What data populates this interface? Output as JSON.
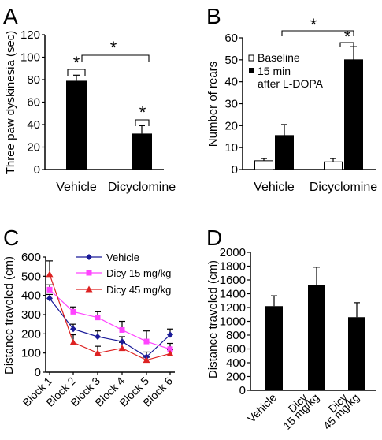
{
  "panels": {
    "A": {
      "letter": "A"
    },
    "B": {
      "letter": "B"
    },
    "C": {
      "letter": "C"
    },
    "D": {
      "letter": "D"
    }
  },
  "chart_data": [
    {
      "id": "A",
      "type": "bar",
      "categories": [
        "Vehicle",
        "Dicyclomine"
      ],
      "series": [
        {
          "values": [
            79,
            32
          ],
          "errors": [
            5,
            7
          ],
          "color": "#000000"
        }
      ],
      "ylabel": "Three paw dyskinesia (sec)",
      "ylim": [
        0,
        120
      ],
      "yticks": [
        "0",
        "20",
        "40",
        "60",
        "80",
        "100",
        "120"
      ],
      "significance_marker": "*",
      "significance": [
        {
          "between": "Vehicle top bar",
          "marker": "*"
        },
        {
          "between": "Vehicle vs Dicyclomine",
          "marker": "*"
        },
        {
          "between": "Dicyclomine top bar",
          "marker": "*"
        }
      ],
      "grid": false
    },
    {
      "id": "B",
      "type": "bar",
      "categories": [
        "Vehicle",
        "Dicyclomine"
      ],
      "series": [
        {
          "name": "Baseline",
          "values": [
            4,
            3.5
          ],
          "errors": [
            1,
            1.5
          ],
          "color": "#ffffff"
        },
        {
          "name": "15 min after L-DOPA",
          "values": [
            15.5,
            50
          ],
          "errors": [
            5,
            6
          ],
          "color": "#000000"
        }
      ],
      "legend_lines": [
        "Baseline",
        "15 min",
        "after L-DOPA"
      ],
      "ylabel": "Number of rears",
      "ylim": [
        0,
        60
      ],
      "yticks": [
        "0",
        "10",
        "20",
        "30",
        "40",
        "50",
        "60"
      ],
      "legend_position": "top-left",
      "significance_marker": "*",
      "grid": false
    },
    {
      "id": "C",
      "type": "line",
      "categories": [
        "Block 1",
        "Block 2",
        "Block 3",
        "Block 4",
        "Block 5",
        "Block 6"
      ],
      "series": [
        {
          "name": "Vehicle",
          "values": [
            385,
            225,
            185,
            160,
            80,
            195
          ],
          "errors": [
            20,
            25,
            30,
            25,
            25,
            30
          ],
          "color": "#1a1a99",
          "marker": "diamond"
        },
        {
          "name": "Dicy 15 mg/kg",
          "values": [
            430,
            315,
            285,
            220,
            160,
            120
          ],
          "errors": [
            25,
            25,
            30,
            45,
            55,
            30
          ],
          "color": "#ff44ff",
          "marker": "square"
        },
        {
          "name": "Dicy 45 mg/kg",
          "values": [
            510,
            155,
            100,
            125,
            63,
            97
          ],
          "errors": [
            70,
            40,
            35,
            30,
            15,
            20
          ],
          "color": "#dd2222",
          "marker": "triangle"
        }
      ],
      "ylabel": "Distance traveled (cm)",
      "ylim": [
        0,
        600
      ],
      "yticks": [
        "0",
        "100",
        "200",
        "300",
        "400",
        "500",
        "600"
      ],
      "legend_position": "top-right",
      "grid": false
    },
    {
      "id": "D",
      "type": "bar",
      "categories": [
        "Vehicle",
        "Dicy 15 mg/kg",
        "Dicy 45 mg/kg"
      ],
      "category_lines": [
        [
          "Vehicle"
        ],
        [
          "Dicy",
          "15 mg/kg"
        ],
        [
          "Dicy",
          "45 mg/kg"
        ]
      ],
      "series": [
        {
          "values": [
            1220,
            1530,
            1060
          ],
          "errors": [
            150,
            255,
            210
          ],
          "color": "#000000"
        }
      ],
      "ylabel": "Distance traveled (cm)",
      "ylim": [
        0,
        2000
      ],
      "yticks": [
        "0",
        "200",
        "400",
        "600",
        "800",
        "1000",
        "1200",
        "1400",
        "1600",
        "1800",
        "2000"
      ],
      "grid": false
    }
  ]
}
